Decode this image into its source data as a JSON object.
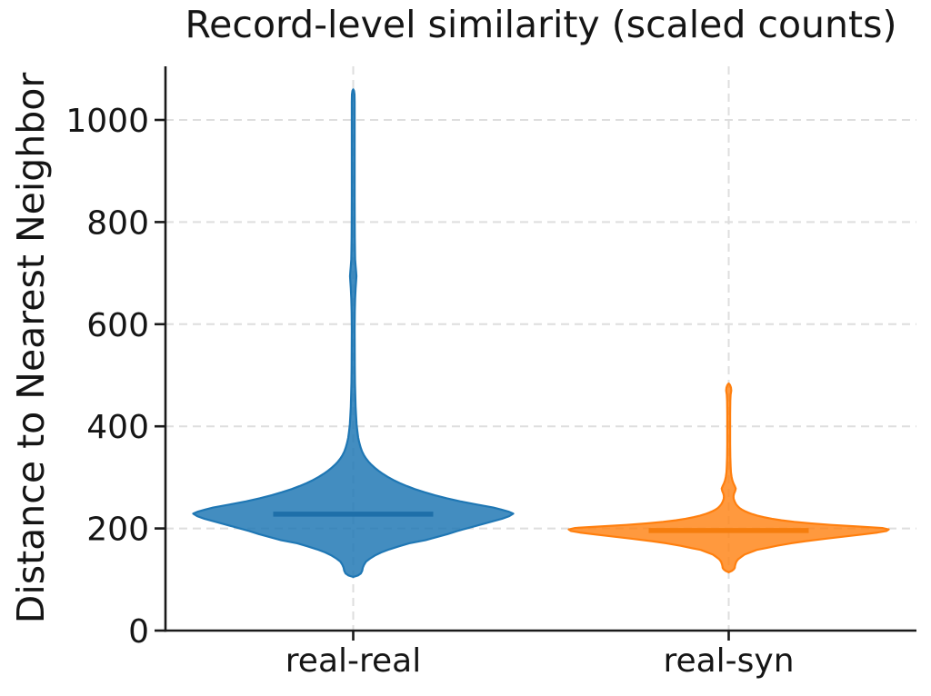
{
  "chart_data": {
    "type": "violin",
    "title": "Record-level similarity (scaled counts)",
    "ylabel": "Distance to Nearest Neighbor",
    "xlabel": "",
    "categories": [
      "real-real",
      "real-syn"
    ],
    "yticks": [
      0,
      200,
      400,
      600,
      800,
      1000
    ],
    "ytick_labels": [
      "0",
      "200",
      "400",
      "600",
      "800",
      "1000"
    ],
    "ylim": [
      0,
      1105
    ],
    "legend": null,
    "grid": {
      "show": true,
      "dashed": true,
      "color": "#dedede",
      "dash": "9 6",
      "width": 2
    },
    "axis_color": "#1a1a1a",
    "text_color": "#151515",
    "series": [
      {
        "name": "real-real",
        "fill": "#1f77b4",
        "fill_opacity": 0.84,
        "edge": "#1f77b4",
        "median_color": "#1e6fa9",
        "stats": {
          "median": 228,
          "min": 105,
          "max": 1060,
          "peak_density_at": 229,
          "upper_bulge_at": 694,
          "spike_top": 1060
        },
        "median_line": {
          "value": 228,
          "half_extent_frac": 0.5
        },
        "profile": [
          [
            105,
            0
          ],
          [
            108,
            0.03
          ],
          [
            112,
            0.048
          ],
          [
            117,
            0.056
          ],
          [
            123,
            0.06
          ],
          [
            129,
            0.068
          ],
          [
            135,
            0.08
          ],
          [
            141,
            0.105
          ],
          [
            147,
            0.135
          ],
          [
            153,
            0.175
          ],
          [
            159,
            0.225
          ],
          [
            165,
            0.285
          ],
          [
            171,
            0.35
          ],
          [
            177,
            0.45
          ],
          [
            183,
            0.52
          ],
          [
            189,
            0.59
          ],
          [
            195,
            0.65
          ],
          [
            201,
            0.72
          ],
          [
            207,
            0.79
          ],
          [
            213,
            0.86
          ],
          [
            219,
            0.93
          ],
          [
            224,
            0.975
          ],
          [
            229,
            1.0
          ],
          [
            233,
            0.97
          ],
          [
            237,
            0.925
          ],
          [
            241,
            0.875
          ],
          [
            247,
            0.77
          ],
          [
            253,
            0.67
          ],
          [
            259,
            0.585
          ],
          [
            265,
            0.51
          ],
          [
            271,
            0.445
          ],
          [
            277,
            0.385
          ],
          [
            283,
            0.335
          ],
          [
            289,
            0.29
          ],
          [
            295,
            0.25
          ],
          [
            301,
            0.215
          ],
          [
            307,
            0.185
          ],
          [
            313,
            0.158
          ],
          [
            319,
            0.134
          ],
          [
            325,
            0.113
          ],
          [
            331,
            0.095
          ],
          [
            337,
            0.08
          ],
          [
            344,
            0.066
          ],
          [
            351,
            0.055
          ],
          [
            359,
            0.046
          ],
          [
            368,
            0.038
          ],
          [
            378,
            0.031
          ],
          [
            390,
            0.026
          ],
          [
            404,
            0.021
          ],
          [
            420,
            0.018
          ],
          [
            438,
            0.015
          ],
          [
            460,
            0.013
          ],
          [
            485,
            0.011
          ],
          [
            515,
            0.01
          ],
          [
            550,
            0.0095
          ],
          [
            590,
            0.009
          ],
          [
            625,
            0.01
          ],
          [
            650,
            0.012
          ],
          [
            670,
            0.015
          ],
          [
            684,
            0.018
          ],
          [
            694,
            0.02
          ],
          [
            703,
            0.018
          ],
          [
            714,
            0.015
          ],
          [
            727,
            0.012
          ],
          [
            745,
            0.011
          ],
          [
            770,
            0.01
          ],
          [
            805,
            0.0095
          ],
          [
            850,
            0.009
          ],
          [
            900,
            0.009
          ],
          [
            950,
            0.009
          ],
          [
            1000,
            0.009
          ],
          [
            1035,
            0.009
          ],
          [
            1050,
            0.008
          ],
          [
            1057,
            0.005
          ],
          [
            1060,
            0
          ]
        ]
      },
      {
        "name": "real-syn",
        "fill": "#ff7f0e",
        "fill_opacity": 0.8,
        "edge": "#ff7f0e",
        "median_color": "#f57d0d",
        "stats": {
          "median": 196,
          "min": 114,
          "max": 484,
          "peak_density_at": 198,
          "upper_bulge_at": 278,
          "spike_top": 484
        },
        "median_line": {
          "value": 196,
          "half_extent_frac": 0.5
        },
        "profile": [
          [
            114,
            0
          ],
          [
            117,
            0.02
          ],
          [
            120,
            0.032
          ],
          [
            123,
            0.038
          ],
          [
            126,
            0.039
          ],
          [
            130,
            0.042
          ],
          [
            135,
            0.048
          ],
          [
            140,
            0.06
          ],
          [
            144,
            0.077
          ],
          [
            149,
            0.1
          ],
          [
            153,
            0.134
          ],
          [
            158,
            0.175
          ],
          [
            162,
            0.24
          ],
          [
            166,
            0.3
          ],
          [
            171,
            0.39
          ],
          [
            175,
            0.48
          ],
          [
            180,
            0.61
          ],
          [
            184,
            0.72
          ],
          [
            188,
            0.83
          ],
          [
            192,
            0.93
          ],
          [
            195,
            0.985
          ],
          [
            198,
            1.0
          ],
          [
            201,
            0.96
          ],
          [
            204,
            0.8
          ],
          [
            207,
            0.64
          ],
          [
            210,
            0.51
          ],
          [
            213,
            0.41
          ],
          [
            216,
            0.33
          ],
          [
            219,
            0.27
          ],
          [
            222,
            0.22
          ],
          [
            225,
            0.18
          ],
          [
            228,
            0.148
          ],
          [
            231,
            0.122
          ],
          [
            234,
            0.1
          ],
          [
            237,
            0.082
          ],
          [
            240,
            0.068
          ],
          [
            244,
            0.055
          ],
          [
            248,
            0.045
          ],
          [
            253,
            0.037
          ],
          [
            258,
            0.031
          ],
          [
            263,
            0.03
          ],
          [
            268,
            0.033
          ],
          [
            273,
            0.04
          ],
          [
            278,
            0.044
          ],
          [
            283,
            0.038
          ],
          [
            288,
            0.03
          ],
          [
            294,
            0.023
          ],
          [
            301,
            0.018
          ],
          [
            310,
            0.014
          ],
          [
            322,
            0.012
          ],
          [
            340,
            0.01
          ],
          [
            365,
            0.009
          ],
          [
            395,
            0.009
          ],
          [
            425,
            0.009
          ],
          [
            450,
            0.01
          ],
          [
            462,
            0.012
          ],
          [
            470,
            0.016
          ],
          [
            476,
            0.014
          ],
          [
            481,
            0.008
          ],
          [
            484,
            0
          ]
        ]
      }
    ]
  }
}
